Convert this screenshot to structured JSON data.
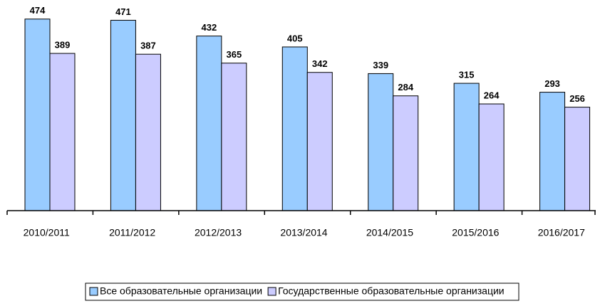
{
  "chart_data": {
    "type": "bar",
    "categories": [
      "2010/2011",
      "2011/2012",
      "2012/2013",
      "2013/2014",
      "2014/2015",
      "2015/2016",
      "2016/2017"
    ],
    "series": [
      {
        "name": "Все образовательные организации",
        "color": "#99ccff",
        "values": [
          474,
          471,
          432,
          405,
          339,
          315,
          293
        ]
      },
      {
        "name": "Государственные образовательные организации",
        "color": "#ccccff",
        "values": [
          389,
          387,
          365,
          342,
          284,
          264,
          256
        ]
      }
    ],
    "ylim": [
      0,
      500
    ],
    "legend": "bottom"
  }
}
